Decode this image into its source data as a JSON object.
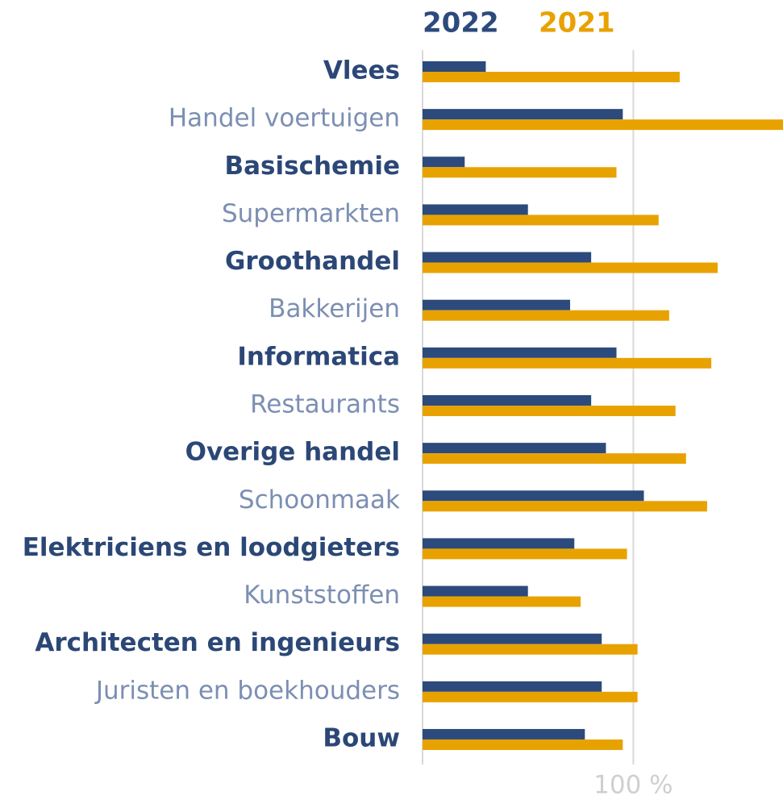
{
  "chart_data": {
    "type": "hbar",
    "categories": [
      "Vlees",
      "Handel voertuigen",
      "Basischemie",
      "Supermarkten",
      "Groothandel",
      "Bakkerijen",
      "Informatica",
      "Restaurants",
      "Overige handel",
      "Schoonmaak",
      "Elektriciens en loodgieters",
      "Kunststoffen",
      "Architecten en ingenieurs",
      "Juristen en boekhouders",
      "Bouw"
    ],
    "series": [
      {
        "name": "2022",
        "color": "#2c4a7c",
        "values": [
          30,
          95,
          20,
          50,
          80,
          70,
          92,
          80,
          87,
          105,
          72,
          50,
          85,
          85,
          77
        ]
      },
      {
        "name": "2021",
        "color": "#e8a200",
        "values": [
          122,
          175,
          92,
          112,
          140,
          117,
          137,
          120,
          125,
          135,
          97,
          75,
          102,
          102,
          95
        ]
      }
    ],
    "xlim": [
      0,
      171
    ],
    "xticks": [
      {
        "value": 100,
        "label": "100 %"
      }
    ],
    "grid": true
  }
}
